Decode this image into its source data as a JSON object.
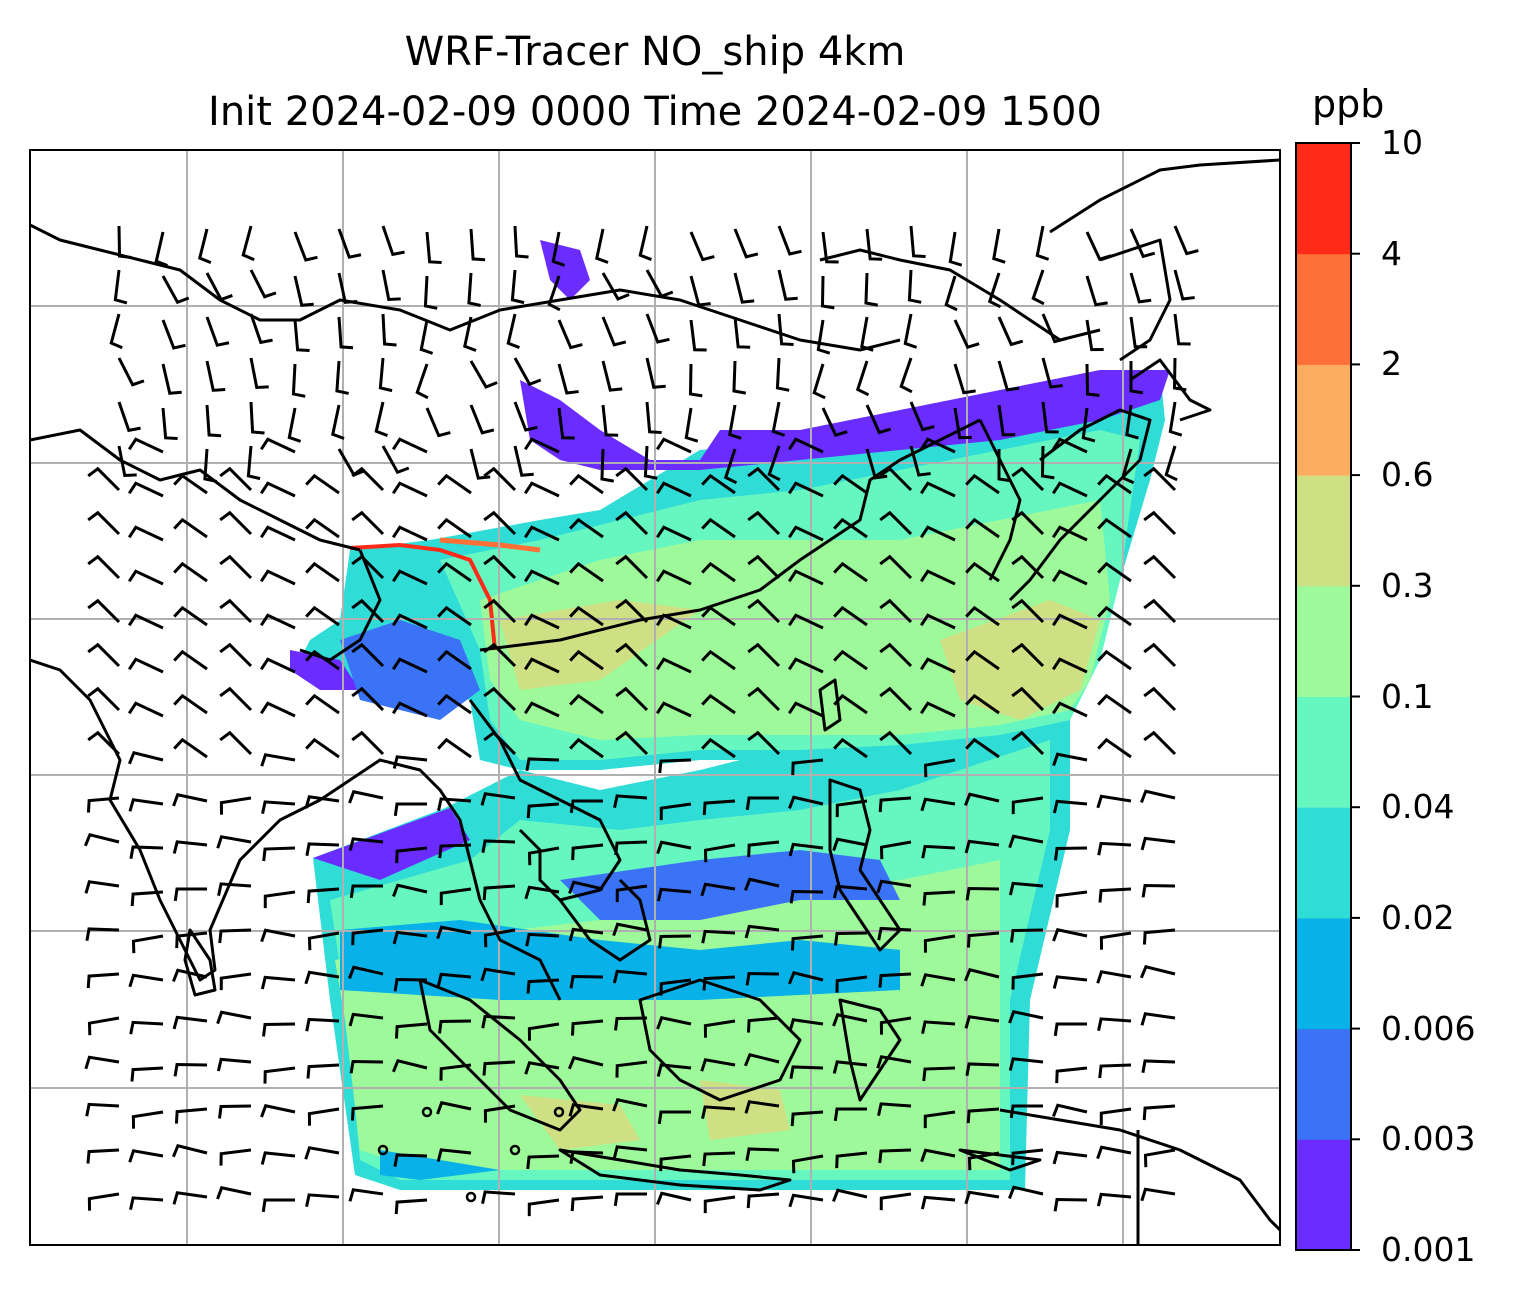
{
  "title": {
    "line1": "WRF-Tracer NO_ship 4km",
    "line2": "Init 2024-02-09 0000 Time 2024-02-09 1500"
  },
  "colorbar": {
    "unit": "ppb",
    "levels": [
      "0.001",
      "0.003",
      "0.006",
      "0.02",
      "0.04",
      "0.1",
      "0.3",
      "0.6",
      "2",
      "4",
      "10"
    ],
    "colors": [
      "#6a2cff",
      "#3a73f5",
      "#08b1e8",
      "#30dcd6",
      "#66f7c1",
      "#9ef99b",
      "#cfe084",
      "#fdad60",
      "#ff7038",
      "#ff2a17"
    ]
  },
  "map": {
    "gridlines": true,
    "features": [
      "coastlines",
      "country-borders",
      "wind-barbs",
      "calm-circles",
      "tracer-concentration-field"
    ]
  }
}
